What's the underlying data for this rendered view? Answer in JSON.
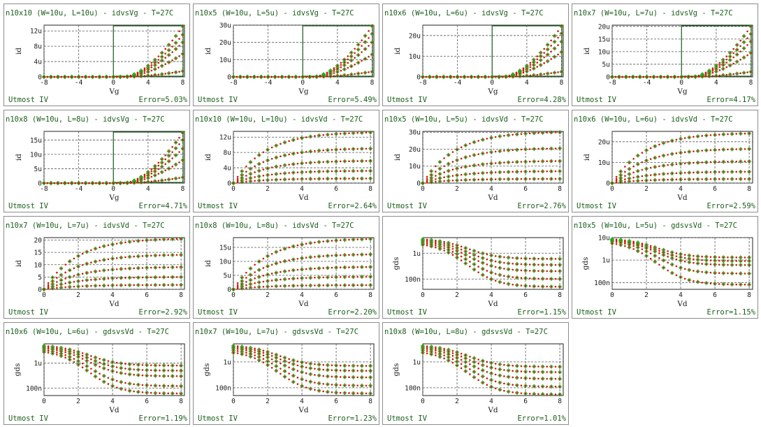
{
  "colors": {
    "measured": "#22b422",
    "simulated": "#dd1111",
    "text": "#1a5e1a",
    "grid": "#555555",
    "window": "#1e5e1e"
  },
  "footer_left": "Utmost IV",
  "chart_data": [
    {
      "type": "scatter",
      "title": "n10x10 (W=10u, L=10u) - idvsVg - T=27C",
      "xlabel": "Vg",
      "ylabel": "id",
      "xlim": [
        -8,
        8.2
      ],
      "xticks": [
        "-8",
        "-4",
        "0",
        "4",
        "8"
      ],
      "xtick_values": [
        -8,
        -4,
        0,
        4,
        8
      ],
      "ylim": [
        0,
        13.5
      ],
      "yticks": [
        "0",
        "4u",
        "8u",
        "12u"
      ],
      "ytick_values": [
        0,
        4,
        8,
        12
      ],
      "unit": "u",
      "scale": "linear",
      "kind": "vg",
      "series_end": [
        13.2,
        11.0,
        9.0,
        6.0,
        1.5
      ],
      "error": "Error=5.03%"
    },
    {
      "type": "scatter",
      "title": "n10x5 (W=10u, L=5u) - idvsVg - T=27C",
      "xlabel": "Vg",
      "ylabel": "id",
      "xlim": [
        -8,
        8.2
      ],
      "xticks": [
        "-8",
        "-4",
        "0",
        "4",
        "8"
      ],
      "xtick_values": [
        -8,
        -4,
        0,
        4,
        8
      ],
      "ylim": [
        0,
        30
      ],
      "yticks": [
        "0",
        "10u",
        "20u",
        "30u"
      ],
      "ytick_values": [
        0,
        10,
        20,
        30
      ],
      "unit": "u",
      "scale": "linear",
      "kind": "vg",
      "series_end": [
        29.5,
        25.0,
        20.0,
        13.0,
        3.0
      ],
      "error": "Error=5.49%"
    },
    {
      "type": "scatter",
      "title": "n10x6 (W=10u, L=6u) - idvsVg - T=27C",
      "xlabel": "Vg",
      "ylabel": "id",
      "xlim": [
        -8,
        8.2
      ],
      "xticks": [
        "-8",
        "-4",
        "0",
        "4",
        "8"
      ],
      "xtick_values": [
        -8,
        -4,
        0,
        4,
        8
      ],
      "ylim": [
        0,
        25
      ],
      "yticks": [
        "0",
        "10u",
        "20u"
      ],
      "ytick_values": [
        0,
        10,
        20
      ],
      "unit": "u",
      "scale": "linear",
      "kind": "vg",
      "series_end": [
        24.5,
        21.0,
        17.0,
        12.0,
        2.5
      ],
      "error": "Error=4.28%"
    },
    {
      "type": "scatter",
      "title": "n10x7 (W=10u, L=7u) - idvsVg - T=27C",
      "xlabel": "Vg",
      "ylabel": "id",
      "xlim": [
        -8,
        8.2
      ],
      "xticks": [
        "-8",
        "-4",
        "0",
        "4",
        "8"
      ],
      "xtick_values": [
        -8,
        -4,
        0,
        4,
        8
      ],
      "ylim": [
        0,
        20.5
      ],
      "yticks": [
        "0",
        "5u",
        "10u",
        "15u",
        "20u"
      ],
      "ytick_values": [
        0,
        5,
        10,
        15,
        20
      ],
      "unit": "u",
      "scale": "linear",
      "kind": "vg",
      "series_end": [
        20.0,
        17.0,
        14.0,
        9.5,
        2.0
      ],
      "error": "Error=4.17%"
    },
    {
      "type": "scatter",
      "title": "n10x8 (W=10u, L=8u) - idvsVg - T=27C",
      "xlabel": "Vg",
      "ylabel": "id",
      "xlim": [
        -8,
        8.2
      ],
      "xticks": [
        "-8",
        "-4",
        "0",
        "4",
        "8"
      ],
      "xtick_values": [
        -8,
        -4,
        0,
        4,
        8
      ],
      "ylim": [
        0,
        18
      ],
      "yticks": [
        "0",
        "5u",
        "10u",
        "15u"
      ],
      "ytick_values": [
        0,
        5,
        10,
        15
      ],
      "unit": "u",
      "scale": "linear",
      "kind": "vg",
      "series_end": [
        17.5,
        15.0,
        12.0,
        8.0,
        2.0
      ],
      "error": "Error=4.71%"
    },
    {
      "type": "scatter",
      "title": "n10x10 (W=10u, L=10u) - idvsVd - T=27C",
      "xlabel": "Vd",
      "ylabel": "id",
      "xlim": [
        0,
        8.2
      ],
      "xticks": [
        "0",
        "2",
        "4",
        "6",
        "8"
      ],
      "xtick_values": [
        0,
        2,
        4,
        6,
        8
      ],
      "ylim": [
        0,
        13.5
      ],
      "yticks": [
        "0",
        "4u",
        "8u",
        "12u"
      ],
      "ytick_values": [
        0,
        4,
        8,
        12
      ],
      "unit": "u",
      "scale": "linear",
      "kind": "vd",
      "series_sat": [
        13.2,
        9.0,
        5.8,
        3.2,
        1.2
      ],
      "error": "Error=2.64%"
    },
    {
      "type": "scatter",
      "title": "n10x5 (W=10u, L=5u) - idvsVd - T=27C",
      "xlabel": "Vd",
      "ylabel": "id",
      "xlim": [
        0,
        8.2
      ],
      "xticks": [
        "0",
        "2",
        "4",
        "6",
        "8"
      ],
      "xtick_values": [
        0,
        2,
        4,
        6,
        8
      ],
      "ylim": [
        0,
        30.5
      ],
      "yticks": [
        "0",
        "10u",
        "20u",
        "30u"
      ],
      "ytick_values": [
        0,
        10,
        20,
        30
      ],
      "unit": "u",
      "scale": "linear",
      "kind": "vd",
      "series_sat": [
        30.0,
        20.5,
        13.0,
        7.0,
        2.5
      ],
      "error": "Error=2.76%"
    },
    {
      "type": "scatter",
      "title": "n10x6 (W=10u, L=6u) - idvsVd - T=27C",
      "xlabel": "Vd",
      "ylabel": "id",
      "xlim": [
        0,
        8.2
      ],
      "xticks": [
        "0",
        "2",
        "4",
        "6",
        "8"
      ],
      "xtick_values": [
        0,
        2,
        4,
        6,
        8
      ],
      "ylim": [
        0,
        25
      ],
      "yticks": [
        "0",
        "10u",
        "20u"
      ],
      "ytick_values": [
        0,
        10,
        20
      ],
      "unit": "u",
      "scale": "linear",
      "kind": "vd",
      "series_sat": [
        24.0,
        16.5,
        10.5,
        5.5,
        2.0
      ],
      "error": "Error=2.59%"
    },
    {
      "type": "scatter",
      "title": "n10x7 (W=10u, L=7u) - idvsVd - T=27C",
      "xlabel": "Vd",
      "ylabel": "id",
      "xlim": [
        0,
        8.2
      ],
      "xticks": [
        "0",
        "2",
        "4",
        "6",
        "8"
      ],
      "xtick_values": [
        0,
        2,
        4,
        6,
        8
      ],
      "ylim": [
        0,
        21
      ],
      "yticks": [
        "0",
        "5",
        "10",
        "15",
        "20"
      ],
      "ytick_values": [
        0,
        5,
        10,
        15,
        20
      ],
      "unit": "",
      "scale": "linear",
      "kind": "vd",
      "series_sat": [
        20.5,
        14.0,
        9.0,
        5.0,
        1.8
      ],
      "error": "Error=2.92%"
    },
    {
      "type": "scatter",
      "title": "n10x8 (W=10u, L=8u) - idvsVd - T=27C",
      "xlabel": "Vd",
      "ylabel": "id",
      "xlim": [
        0,
        8.2
      ],
      "xticks": [
        "0",
        "2",
        "4",
        "6",
        "8"
      ],
      "xtick_values": [
        0,
        2,
        4,
        6,
        8
      ],
      "ylim": [
        0,
        18.5
      ],
      "yticks": [
        "0",
        "5u",
        "10u",
        "15u"
      ],
      "ytick_values": [
        0,
        5,
        10,
        15
      ],
      "unit": "u",
      "scale": "linear",
      "kind": "vd",
      "series_sat": [
        18.0,
        12.5,
        8.0,
        4.5,
        1.5
      ],
      "error": "Error=2.20%"
    },
    {
      "type": "scatter",
      "title": "",
      "xlabel": "Vd",
      "ylabel": "gds",
      "xlim": [
        0,
        8.2
      ],
      "xticks": [
        "0",
        "2",
        "4",
        "6",
        "8"
      ],
      "xtick_values": [
        0,
        2,
        4,
        6,
        8
      ],
      "ylim": [
        0.04,
        4
      ],
      "yticks": [
        "1u",
        "100n"
      ],
      "ytick_values": [
        1,
        0.1
      ],
      "unit": "",
      "scale": "log",
      "kind": "gds",
      "series_start": [
        3.8,
        3.5,
        3.2,
        2.9,
        2.6
      ],
      "series_end": [
        0.6,
        0.35,
        0.2,
        0.1,
        0.05
      ],
      "error": "Error=1.15%"
    },
    {
      "type": "scatter",
      "title": "n10x5 (W=10u, L=5u) - gdsvsVd - T=27C",
      "xlabel": "Vd",
      "ylabel": "gds",
      "xlim": [
        0,
        8.2
      ],
      "xticks": [
        "0",
        "2",
        "4",
        "6",
        "8"
      ],
      "xtick_values": [
        0,
        2,
        4,
        6,
        8
      ],
      "ylim": [
        0.05,
        10
      ],
      "yticks": [
        "10u",
        "1u",
        "100n"
      ],
      "ytick_values": [
        10,
        1,
        0.1
      ],
      "unit": "",
      "scale": "log",
      "kind": "gds",
      "series_start": [
        9.5,
        9.0,
        8.5,
        8.0,
        7.0
      ],
      "series_end": [
        1.3,
        0.9,
        0.6,
        0.25,
        0.08
      ],
      "error": "Error=1.15%"
    },
    {
      "type": "scatter",
      "title": "n10x6 (W=10u, L=6u) - gdsvsVd - T=27C",
      "xlabel": "Vd",
      "ylabel": "gds",
      "xlim": [
        0,
        8.2
      ],
      "xticks": [
        "0",
        "2",
        "4",
        "6",
        "8"
      ],
      "xtick_values": [
        0,
        2,
        4,
        6,
        8
      ],
      "ylim": [
        0.05,
        6
      ],
      "yticks": [
        "1u",
        "100n"
      ],
      "ytick_values": [
        1,
        0.1
      ],
      "unit": "",
      "scale": "log",
      "kind": "gds",
      "series_start": [
        5.5,
        5.0,
        4.5,
        4.0,
        3.5
      ],
      "series_end": [
        0.8,
        0.5,
        0.3,
        0.12,
        0.06
      ],
      "error": "Error=1.19%"
    },
    {
      "type": "scatter",
      "title": "n10x7 (W=10u, L=7u) - gdsvsVd - T=27C",
      "xlabel": "Vd",
      "ylabel": "gds",
      "xlim": [
        0,
        8.2
      ],
      "xticks": [
        "0",
        "2",
        "4",
        "6",
        "8"
      ],
      "xtick_values": [
        0,
        2,
        4,
        6,
        8
      ],
      "ylim": [
        0.05,
        5
      ],
      "yticks": [
        "1u",
        "100n"
      ],
      "ytick_values": [
        1,
        0.1
      ],
      "unit": "",
      "scale": "log",
      "kind": "gds",
      "series_start": [
        4.6,
        4.2,
        3.8,
        3.3,
        2.8
      ],
      "series_end": [
        0.7,
        0.45,
        0.25,
        0.12,
        0.06
      ],
      "error": "Error=1.23%"
    },
    {
      "type": "scatter",
      "title": "n10x8 (W=10u, L=8u) - gdsvsVd - T=27C",
      "xlabel": "Vd",
      "ylabel": "gds",
      "xlim": [
        0,
        8.2
      ],
      "xticks": [
        "0",
        "2",
        "4",
        "6",
        "8"
      ],
      "xtick_values": [
        0,
        2,
        4,
        6,
        8
      ],
      "ylim": [
        0.05,
        5
      ],
      "yticks": [
        "1u",
        "100n"
      ],
      "ytick_values": [
        1,
        0.1
      ],
      "unit": "",
      "scale": "log",
      "kind": "gds",
      "series_start": [
        4.6,
        4.2,
        3.8,
        3.3,
        2.8
      ],
      "series_end": [
        0.65,
        0.4,
        0.22,
        0.11,
        0.055
      ],
      "error": "Error=1.01%"
    }
  ]
}
